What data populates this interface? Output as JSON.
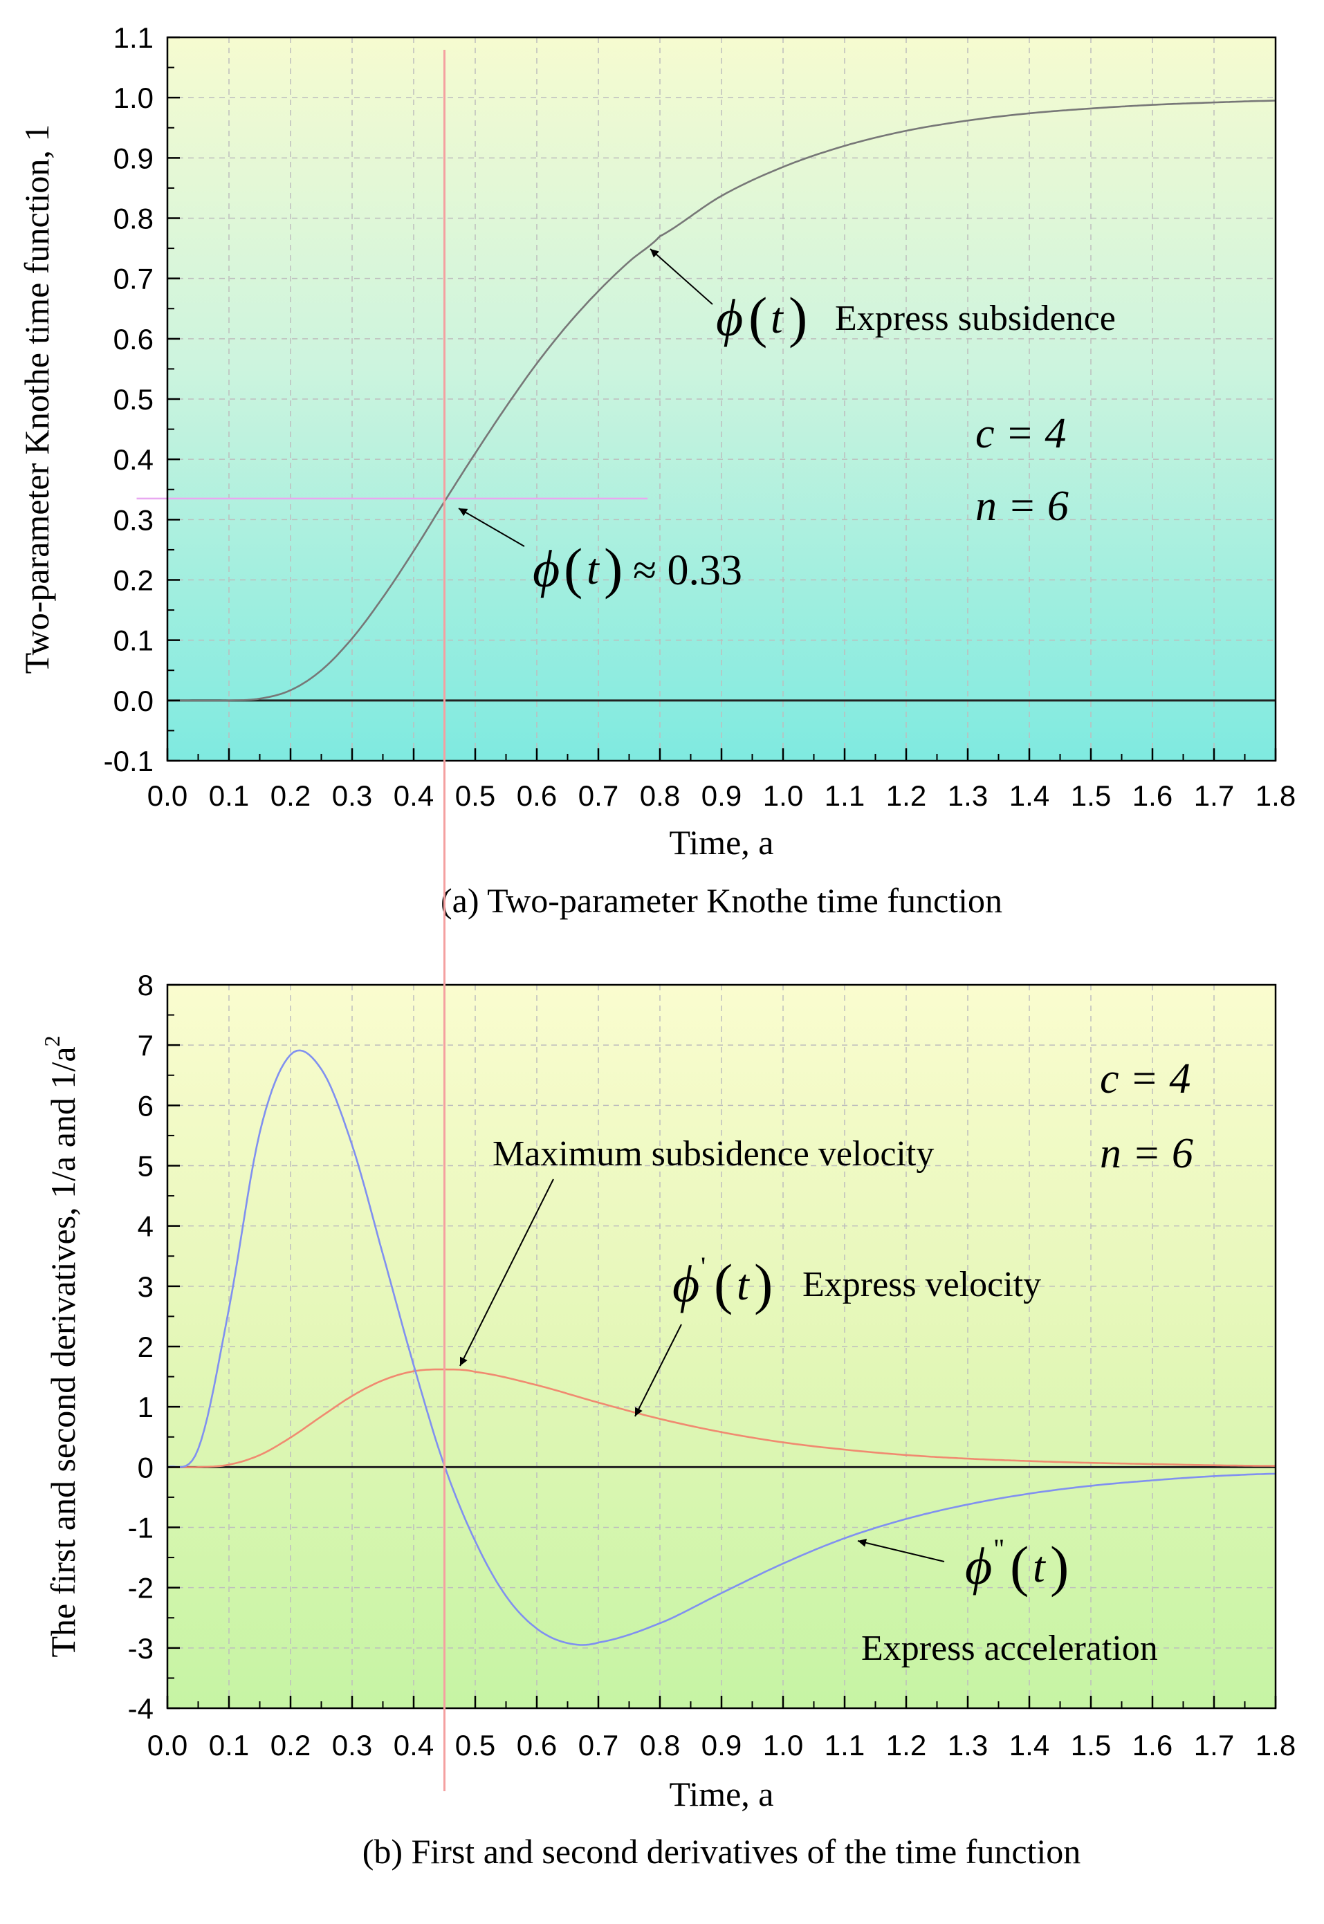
{
  "chart_data": [
    {
      "panel": "a",
      "type": "line",
      "caption": "(a) Two-parameter Knothe time function",
      "xlabel": "Time, a",
      "ylabel": "Two-parameter Knothe time function, 1",
      "xlim": [
        0.0,
        1.8
      ],
      "ylim": [
        -0.1,
        1.1
      ],
      "xticks": [
        "0.0",
        "0.1",
        "0.2",
        "0.3",
        "0.4",
        "0.5",
        "0.6",
        "0.7",
        "0.8",
        "0.9",
        "1.0",
        "1.1",
        "1.2",
        "1.3",
        "1.4",
        "1.5",
        "1.6",
        "1.7",
        "1.8"
      ],
      "yticks": [
        "-0.1",
        "0.0",
        "0.1",
        "0.2",
        "0.3",
        "0.4",
        "0.5",
        "0.6",
        "0.7",
        "0.8",
        "0.9",
        "1.0",
        "1.1"
      ],
      "grid": true,
      "background": {
        "top": "#f6fbd0",
        "bottom": "#7feae0"
      },
      "series": [
        {
          "function": "knothe",
          "color": "#777777",
          "x": [
            0.0,
            0.1,
            0.15,
            0.2,
            0.25,
            0.3,
            0.35,
            0.4,
            0.45,
            0.5,
            0.55,
            0.6,
            0.65,
            0.7,
            0.75,
            0.8,
            0.9,
            1.0,
            1.1,
            1.2,
            1.3,
            1.4,
            1.5,
            1.6,
            1.7,
            1.8
          ],
          "y": [
            0.0,
            0.0,
            0.003,
            0.017,
            0.05,
            0.103,
            0.171,
            0.248,
            0.33,
            0.41,
            0.487,
            0.559,
            0.623,
            0.679,
            0.728,
            0.77,
            0.837,
            0.885,
            0.92,
            0.945,
            0.962,
            0.974,
            0.982,
            0.988,
            0.992,
            0.995
          ]
        }
      ],
      "reference_lines": {
        "vertical_x": 0.45,
        "horizontal_y": 0.335,
        "vertical_color": "#f4a0a0",
        "horizontal_color": "#e9a8f0"
      },
      "annotations": {
        "phi_text": "ϕ",
        "t_text": "t",
        "open_paren": "(",
        "close_paren": ")",
        "subsidence_label": "Express subsidence",
        "approx_text": "≈ 0.33",
        "c_param": "c = 4",
        "n_param": "n = 6"
      }
    },
    {
      "panel": "b",
      "type": "line",
      "caption": "(b) First and second derivatives of the time function",
      "xlabel": "Time, a",
      "ylabel": "The first and second derivatives, 1/a and 1/a",
      "ylabel_sup": "2",
      "xlim": [
        0.0,
        1.8
      ],
      "ylim": [
        -4,
        8
      ],
      "xticks": [
        "0.0",
        "0.1",
        "0.2",
        "0.3",
        "0.4",
        "0.5",
        "0.6",
        "0.7",
        "0.8",
        "0.9",
        "1.0",
        "1.1",
        "1.2",
        "1.3",
        "1.4",
        "1.5",
        "1.6",
        "1.7",
        "1.8"
      ],
      "yticks": [
        "-4",
        "-3",
        "-2",
        "-1",
        "0",
        "1",
        "2",
        "3",
        "4",
        "5",
        "6",
        "7",
        "8"
      ],
      "grid": true,
      "background": {
        "top": "#fafccf",
        "bottom": "#c6f4a4"
      },
      "series": [
        {
          "function": "velocity",
          "color": "#f08a70",
          "x": [
            0.0,
            0.05,
            0.1,
            0.15,
            0.2,
            0.25,
            0.3,
            0.35,
            0.4,
            0.45,
            0.5,
            0.6,
            0.7,
            0.8,
            0.9,
            1.0,
            1.1,
            1.2,
            1.3,
            1.4,
            1.5,
            1.6,
            1.7,
            1.8
          ],
          "y": [
            0.0,
            0.0,
            0.04,
            0.2,
            0.49,
            0.84,
            1.18,
            1.44,
            1.59,
            1.62,
            1.58,
            1.36,
            1.07,
            0.8,
            0.58,
            0.41,
            0.29,
            0.2,
            0.14,
            0.1,
            0.07,
            0.05,
            0.03,
            0.02
          ]
        },
        {
          "function": "acceleration",
          "color": "#8090f0",
          "x": [
            0.0,
            0.05,
            0.1,
            0.15,
            0.2,
            0.25,
            0.3,
            0.35,
            0.4,
            0.45,
            0.5,
            0.55,
            0.6,
            0.65,
            0.7,
            0.8,
            0.9,
            1.0,
            1.1,
            1.2,
            1.3,
            1.4,
            1.5,
            1.6,
            1.7,
            1.8
          ],
          "y": [
            0.0,
            0.3,
            2.63,
            5.55,
            6.84,
            6.6,
            5.34,
            3.53,
            1.69,
            0.02,
            -1.23,
            -2.14,
            -2.68,
            -2.92,
            -2.91,
            -2.59,
            -2.09,
            -1.6,
            -1.18,
            -0.86,
            -0.62,
            -0.44,
            -0.31,
            -0.22,
            -0.15,
            -0.11
          ]
        }
      ],
      "reference_lines": {
        "vertical_x": 0.45,
        "vertical_color": "#f4a0a0"
      },
      "annotations": {
        "phi_text": "ϕ",
        "t_text": "t",
        "open_paren": "(",
        "close_paren": ")",
        "prime": "'",
        "double_prime": "\"",
        "max_velocity_label": "Maximum subsidence velocity",
        "velocity_label": "Express velocity",
        "acceleration_label": "Express acceleration",
        "c_param": "c = 4",
        "n_param": "n = 6"
      }
    }
  ]
}
